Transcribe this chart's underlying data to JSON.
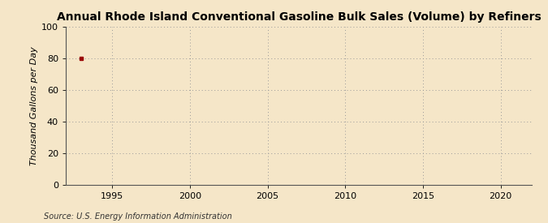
{
  "title": "Annual Rhode Island Conventional Gasoline Bulk Sales (Volume) by Refiners",
  "ylabel": "Thousand Gallons per Day",
  "source": "Source: U.S. Energy Information Administration",
  "xlim": [
    1992,
    2022
  ],
  "ylim": [
    0,
    100
  ],
  "xticks": [
    1995,
    2000,
    2005,
    2010,
    2015,
    2020
  ],
  "yticks": [
    0,
    20,
    40,
    60,
    80,
    100
  ],
  "data_x": [
    1993
  ],
  "data_y": [
    80
  ],
  "data_color": "#990000",
  "marker": "s",
  "marker_size": 3,
  "background_color": "#F5E6C8",
  "plot_bg_color": "#F5E6C8",
  "grid_color": "#999999",
  "title_fontsize": 10,
  "axis_fontsize": 8,
  "label_fontsize": 8,
  "source_fontsize": 7
}
